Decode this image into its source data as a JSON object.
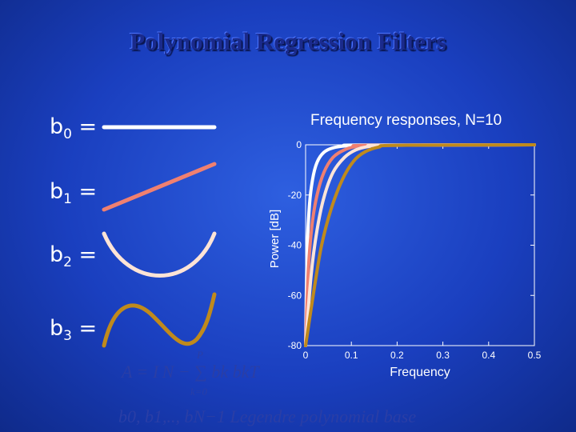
{
  "slide": {
    "title": "Polynomial Regression Filters",
    "labels": {
      "b0": "b",
      "b1": "b",
      "b2": "b",
      "b3": "b",
      "sub0": "0",
      "sub1": "1",
      "sub2": "2",
      "sub3": "3",
      "eq": " ="
    },
    "formula_1": "A = I N − ∑ bk bkT",
    "formula_1_sum_top": "P",
    "formula_1_sum_bottom": "k=0",
    "formula_2": "b0, b1,.., bN−1  Legendre polynomial base"
  },
  "colors": {
    "b0": "#ffffff",
    "b1": "#f08070",
    "b2": "#ffe4d6",
    "b3": "#c08a1c",
    "axis": "#ffffff"
  },
  "chart_data": {
    "type": "line",
    "title": "Frequency responses, N=10",
    "xlabel": "Frequency",
    "ylabel": "Power [dB]",
    "xlim": [
      0,
      0.5
    ],
    "ylim": [
      -80,
      0
    ],
    "xticks": [
      0,
      0.1,
      0.2,
      0.3,
      0.4,
      0.5
    ],
    "yticks": [
      0,
      -20,
      -40,
      -60,
      -80
    ],
    "xtick_labels": [
      "0",
      "0.1",
      "0.2",
      "0.3",
      "0.4",
      "0.5"
    ],
    "ytick_labels": [
      "0",
      "-20",
      "-40",
      "-60",
      "-80"
    ],
    "series": [
      {
        "color": "#ffffff",
        "x": [
          0.0,
          0.003,
          0.008,
          0.015,
          0.025,
          0.04,
          0.06,
          0.09,
          0.12,
          0.5
        ],
        "y": [
          -80,
          -45,
          -25,
          -14,
          -7,
          -3,
          -1.2,
          -0.4,
          -0.1,
          0
        ]
      },
      {
        "color": "#f08070",
        "x": [
          0.0,
          0.006,
          0.014,
          0.025,
          0.04,
          0.06,
          0.085,
          0.11,
          0.14,
          0.5
        ],
        "y": [
          -80,
          -50,
          -32,
          -20,
          -11,
          -5,
          -2,
          -0.7,
          -0.2,
          0
        ]
      },
      {
        "color": "#ffe4d6",
        "x": [
          0.0,
          0.012,
          0.025,
          0.04,
          0.06,
          0.085,
          0.11,
          0.14,
          0.17,
          0.5
        ],
        "y": [
          -80,
          -52,
          -34,
          -21,
          -11,
          -5,
          -2,
          -0.6,
          -0.2,
          0
        ]
      },
      {
        "color": "#c08a1c",
        "x": [
          0.0,
          0.02,
          0.035,
          0.055,
          0.08,
          0.105,
          0.13,
          0.16,
          0.2,
          0.5
        ],
        "y": [
          -80,
          -56,
          -40,
          -26,
          -14,
          -6.5,
          -2.8,
          -0.9,
          -0.2,
          0
        ]
      }
    ]
  }
}
